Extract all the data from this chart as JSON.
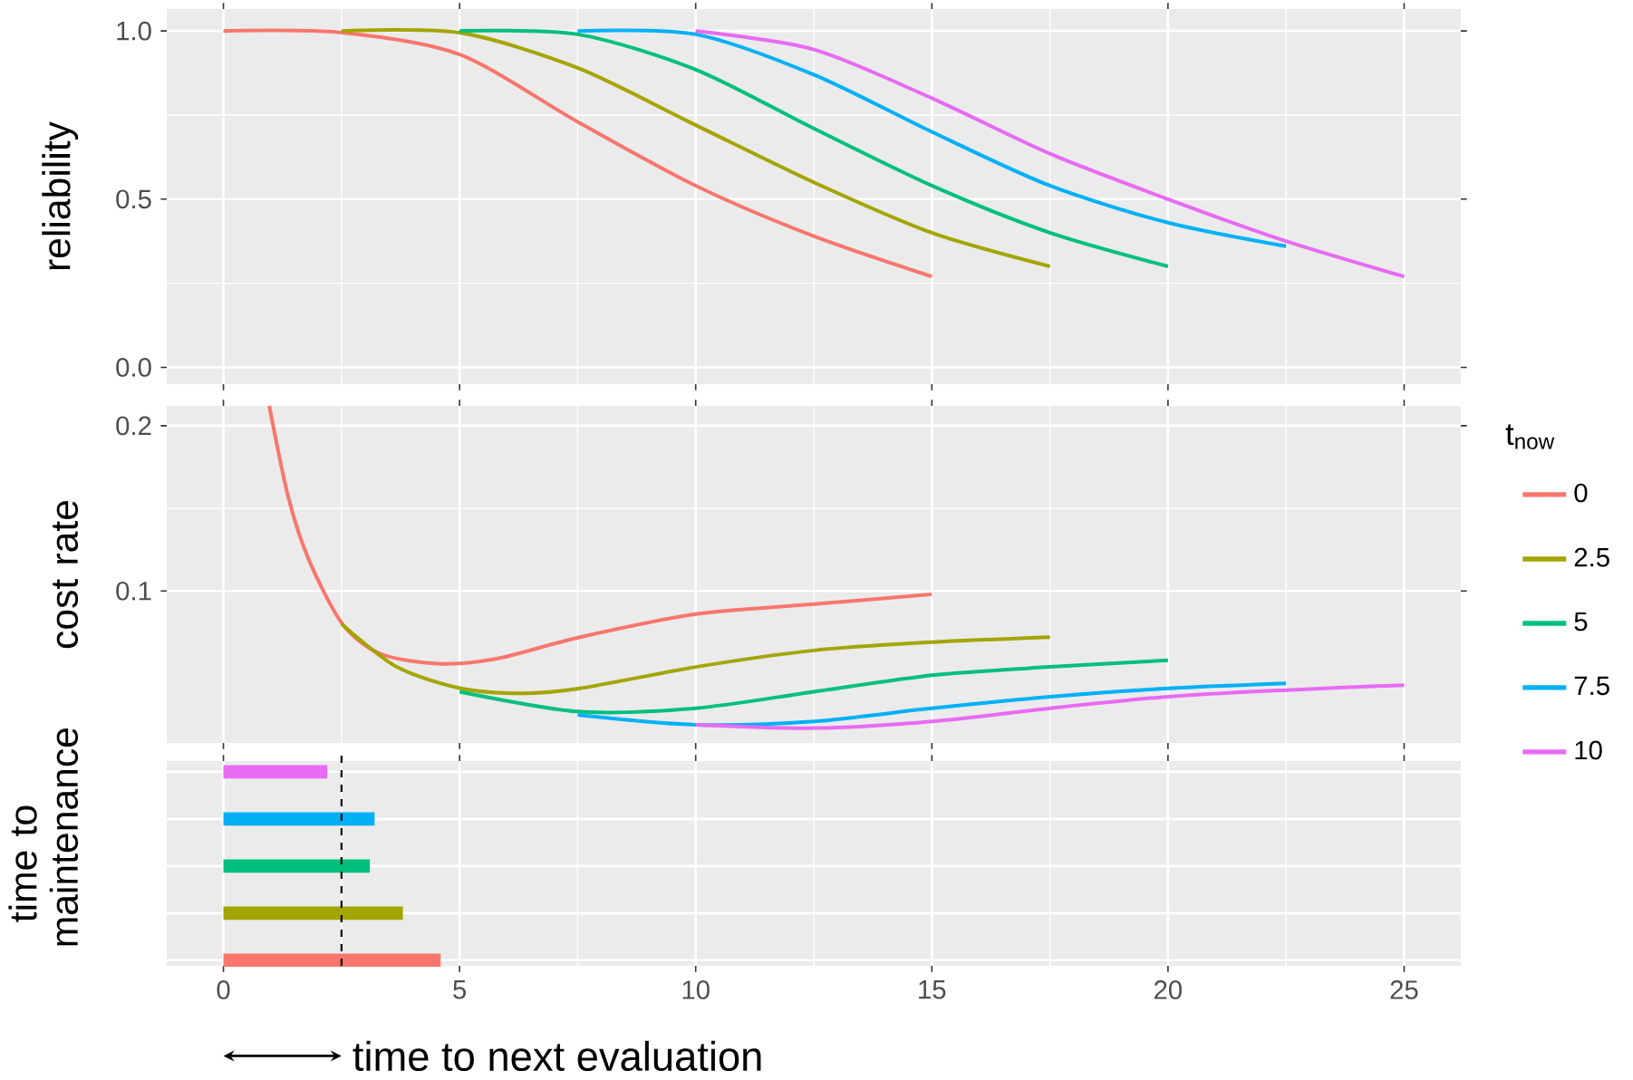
{
  "chart_data": [
    {
      "type": "line",
      "ylabel": "reliability",
      "xlim": [
        -1.2,
        26.2
      ],
      "ylim": [
        -0.05,
        1.065
      ],
      "xticks": [
        0,
        5,
        10,
        15,
        20,
        25
      ],
      "yticks": [
        {
          "value": 0,
          "label": "0.0"
        },
        0.5,
        {
          "value": 1,
          "label": "1.0"
        }
      ],
      "grid": true,
      "tick_labels": "y",
      "series": [
        {
          "color": "#f8766d",
          "x": [
            0,
            2.5,
            5,
            7.5,
            10,
            12.5,
            15
          ],
          "values": [
            1,
            0.995,
            0.93,
            0.73,
            0.54,
            0.39,
            0.27
          ]
        },
        {
          "color": "#a3a500",
          "x": [
            2.5,
            5,
            7.5,
            10,
            12.5,
            15,
            17.5
          ],
          "values": [
            1,
            0.995,
            0.89,
            0.72,
            0.55,
            0.4,
            0.3
          ]
        },
        {
          "color": "#00bf7d",
          "x": [
            5,
            7.5,
            10,
            12.5,
            15,
            17.5,
            20
          ],
          "values": [
            1,
            0.99,
            0.885,
            0.71,
            0.54,
            0.4,
            0.3
          ]
        },
        {
          "color": "#00b0f6",
          "x": [
            7.5,
            10,
            12.5,
            15,
            17.5,
            20,
            22.5
          ],
          "values": [
            1,
            0.99,
            0.87,
            0.7,
            0.54,
            0.43,
            0.36
          ]
        },
        {
          "color": "#e76bf3",
          "x": [
            10,
            12.5,
            15,
            17.5,
            20,
            22.5,
            25
          ],
          "values": [
            1,
            0.945,
            0.8,
            0.635,
            0.5,
            0.375,
            0.27
          ]
        }
      ]
    },
    {
      "type": "line",
      "ylabel": "cost rate",
      "xlim": [
        -1.2,
        26.2
      ],
      "ylim": [
        0.008,
        0.212
      ],
      "xticks": [
        0,
        5,
        10,
        15,
        20,
        25
      ],
      "yticks": [
        0.1,
        0.2
      ],
      "grid": true,
      "tick_labels": "y",
      "legend": "right",
      "legend_title": "t$_{now}$",
      "series": [
        {
          "name": "0",
          "color": "#f8766d",
          "x": [
            0.97,
            1.38,
            1.82,
            2.52,
            3.32,
            4.55,
            5.79,
            7.55,
            10,
            12.5,
            15
          ],
          "values": [
            0.212,
            0.156,
            0.118,
            0.08,
            0.062,
            0.056,
            0.059,
            0.072,
            0.086,
            0.092,
            0.098
          ]
        },
        {
          "name": "2.5",
          "color": "#a3a500",
          "x": [
            2.5,
            3.67,
            5.03,
            6.32,
            7.55,
            10,
            12.5,
            15,
            17.5
          ],
          "values": [
            0.08,
            0.054,
            0.041,
            0.038,
            0.041,
            0.054,
            0.064,
            0.069,
            0.072
          ]
        },
        {
          "name": "5",
          "color": "#00bf7d",
          "x": [
            5,
            7.5,
            10,
            12.5,
            15,
            17.5,
            20
          ],
          "values": [
            0.039,
            0.027,
            0.029,
            0.039,
            0.049,
            0.054,
            0.058
          ]
        },
        {
          "name": "7.5",
          "color": "#00b0f6",
          "x": [
            7.5,
            10,
            12.5,
            15,
            17.5,
            20,
            22.5
          ],
          "values": [
            0.025,
            0.019,
            0.021,
            0.029,
            0.036,
            0.041,
            0.044
          ]
        },
        {
          "name": "10",
          "color": "#e76bf3",
          "x": [
            10,
            12.5,
            15,
            17.5,
            20,
            22.5,
            25
          ],
          "values": [
            0.019,
            0.017,
            0.021,
            0.029,
            0.036,
            0.04,
            0.043
          ]
        }
      ]
    },
    {
      "type": "bar",
      "orientation": "horizontal",
      "ylabel": "time to maintenance",
      "categories": [
        null,
        null,
        null,
        null,
        null
      ],
      "values": [
        2.2,
        3.2,
        3.1,
        3.8,
        4.6
      ],
      "colors": [
        "#e76bf3",
        "#00b0f6",
        "#00bf7d",
        "#a3a500",
        "#f8766d"
      ],
      "xlim": [
        -1.2,
        26.2
      ],
      "xticks": [
        0,
        5,
        10,
        15,
        20,
        25
      ],
      "grid": true,
      "tick_labels": "x",
      "ref_lines": [
        {
          "axis": "x",
          "value": 2.5,
          "color": "#000000",
          "line_style": "dashed"
        }
      ],
      "annotations": [
        "time to next evaluation"
      ]
    }
  ]
}
